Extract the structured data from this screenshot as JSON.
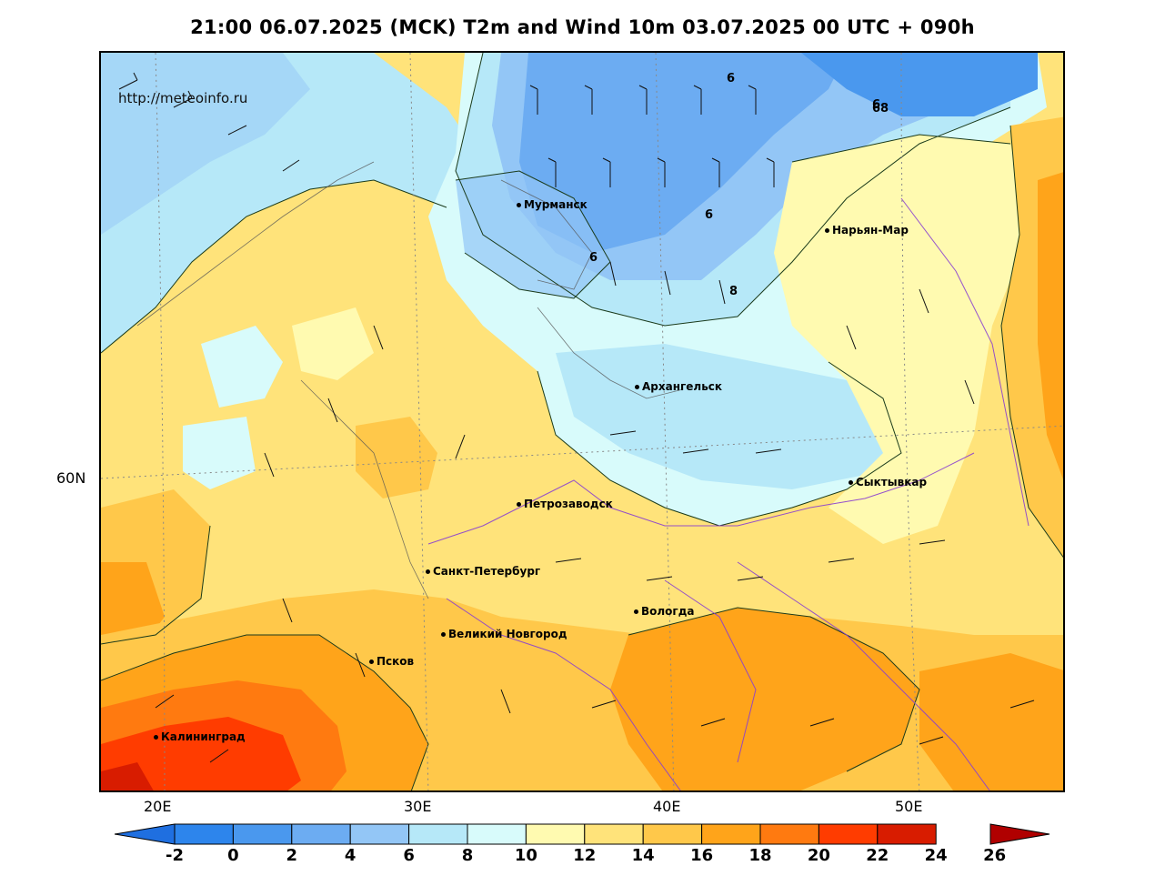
{
  "title": "21:00 06.07.2025 (MCK) T2m and Wind 10m 03.07.2025 00 UTC + 090h",
  "watermark": "http://meteoinfo.ru",
  "map": {
    "latitude_labels": [
      "60N"
    ],
    "longitude_labels": [
      "20E",
      "30E",
      "40E",
      "50E"
    ],
    "cities": [
      {
        "name": "Мурманск"
      },
      {
        "name": "Нарьян-Мар"
      },
      {
        "name": "Архангельск"
      },
      {
        "name": "Сыктывкар"
      },
      {
        "name": "Петрозаводск"
      },
      {
        "name": "Санкт-Петербург"
      },
      {
        "name": "Вологда"
      },
      {
        "name": "Великий Новгород"
      },
      {
        "name": "Псков"
      },
      {
        "name": "Калининград"
      }
    ],
    "contour_labels": [
      "6",
      "6",
      "6",
      "6",
      "8",
      "68"
    ]
  },
  "colorbar": {
    "labels": [
      "-2",
      "0",
      "2",
      "4",
      "6",
      "8",
      "10",
      "12",
      "14",
      "16",
      "18",
      "20",
      "22",
      "24",
      "26"
    ],
    "colors": [
      "#1f6fe0",
      "#2d85ec",
      "#4a98ee",
      "#6cacf2",
      "#93c6f6",
      "#b6e8f8",
      "#d8fbfb",
      "#fffab0",
      "#ffe37a",
      "#ffc84a",
      "#ffa41a",
      "#ff7a10",
      "#ff3c00",
      "#d81c00",
      "#b00000"
    ]
  }
}
